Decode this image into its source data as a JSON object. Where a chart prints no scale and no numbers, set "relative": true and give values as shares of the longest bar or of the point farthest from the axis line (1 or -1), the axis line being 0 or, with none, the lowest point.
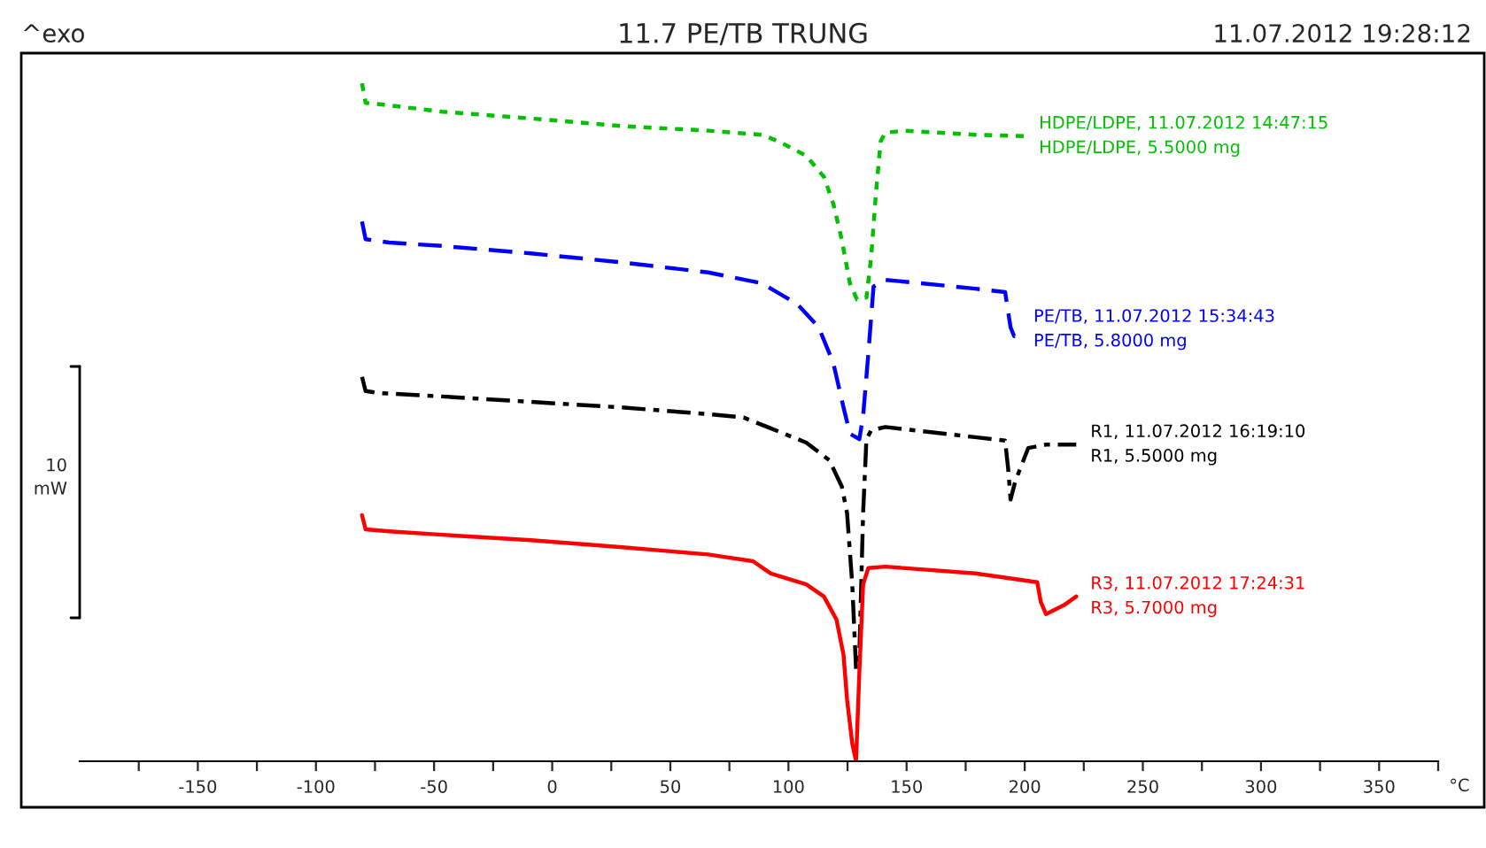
{
  "chart_data": {
    "type": "line",
    "title": "11.7 PE/TB TRUNG",
    "xlabel": "°C",
    "relative": true,
    "annotations": [
      "^exo",
      "11.07.2012 19:28:12",
      "10\nmW"
    ],
    "xlim": [
      -200,
      375
    ],
    "xticks": [
      {
        "value": -175,
        "label": null
      },
      -150,
      {
        "value": -125,
        "label": null
      },
      -100,
      {
        "value": -75,
        "label": null
      },
      -50,
      {
        "value": -25,
        "label": null
      },
      0,
      {
        "value": 25,
        "label": null
      },
      50,
      {
        "value": 75,
        "label": null
      },
      100,
      {
        "value": 125,
        "label": null
      },
      150,
      {
        "value": 175,
        "label": null
      },
      200,
      {
        "value": 225,
        "label": null
      },
      250,
      {
        "value": 275,
        "label": null
      },
      300,
      {
        "value": 325,
        "label": null
      },
      350,
      {
        "value": 375,
        "label": null
      }
    ],
    "grid": false,
    "legend": false,
    "tick_labels": "x",
    "series": [
      {
        "name": "HDPE/LDPE, 11.07.2012 14:47:15\nHDPE/LDPE, 5.5000 mg",
        "color": "#00c000",
        "line_style": "dotted",
        "x": [
          -80.5,
          -79,
          -73,
          -46.6,
          -9,
          28.6,
          66,
          88.7,
          96,
          107.5,
          115,
          119,
          122.5,
          126,
          129,
          133,
          135,
          137,
          139,
          141,
          149,
          179,
          200
        ],
        "values": [
          1.0,
          0.971,
          0.969,
          0.958,
          0.948,
          0.937,
          0.93,
          0.924,
          0.914,
          0.893,
          0.862,
          0.822,
          0.77,
          0.705,
          0.681,
          0.684,
          0.744,
          0.836,
          0.914,
          0.927,
          0.93,
          0.924,
          0.922
        ]
      },
      {
        "name": "PE/TB, 11.07.2012 15:34:43\nPE/TB, 5.8000 mg",
        "color": "#0000ff",
        "line_style": "dashed",
        "x": [
          -80.5,
          -79,
          -69,
          -46.6,
          -9,
          28.6,
          66,
          88.7,
          103.8,
          112.8,
          119,
          123.3,
          126,
          130,
          131.6,
          133.8,
          136,
          141,
          156,
          179,
          191.7,
          194,
          195.5,
          197.7
        ],
        "values": [
          0.796,
          0.77,
          0.765,
          0.76,
          0.749,
          0.736,
          0.721,
          0.705,
          0.674,
          0.64,
          0.587,
          0.522,
          0.483,
          0.475,
          0.509,
          0.601,
          0.7,
          0.71,
          0.705,
          0.697,
          0.692,
          0.64,
          0.627,
          0.637
        ]
      },
      {
        "name": "R1, 11.07.2012 16:19:10\nR1, 5.5000 mg",
        "color": "#000000",
        "line_style": "dashdot",
        "x": [
          -80.5,
          -79,
          -73,
          -46.6,
          -9,
          28.6,
          66,
          81,
          92.5,
          107.5,
          117.3,
          122.6,
          124.8,
          127,
          128.6,
          130,
          131.6,
          133,
          135,
          141,
          179,
          191.7,
          193,
          194,
          196,
          201.5,
          209,
          221.8
        ],
        "values": [
          0.567,
          0.546,
          0.543,
          0.538,
          0.53,
          0.522,
          0.512,
          0.507,
          0.491,
          0.47,
          0.444,
          0.405,
          0.366,
          0.261,
          0.136,
          0.157,
          0.366,
          0.475,
          0.488,
          0.493,
          0.478,
          0.473,
          0.431,
          0.386,
          0.413,
          0.462,
          0.467,
          0.467
        ]
      },
      {
        "name": "R3, 11.07.2012 17:24:31\nR3, 5.7000 mg",
        "color": "#ff0000",
        "line_style": "solid",
        "x": [
          -80.5,
          -79,
          -69,
          -46.6,
          -9,
          28.6,
          66,
          85,
          92.5,
          107.5,
          115,
          120.3,
          123.3,
          124.8,
          127,
          128.6,
          130,
          131.6,
          133.8,
          141,
          179,
          205.3,
          206.8,
          209,
          216.5,
          221.8
        ],
        "values": [
          0.363,
          0.342,
          0.339,
          0.334,
          0.326,
          0.316,
          0.305,
          0.295,
          0.277,
          0.261,
          0.243,
          0.209,
          0.157,
          0.091,
          0.026,
          0.0,
          0.131,
          0.261,
          0.285,
          0.287,
          0.277,
          0.264,
          0.235,
          0.217,
          0.23,
          0.243
        ]
      }
    ]
  }
}
